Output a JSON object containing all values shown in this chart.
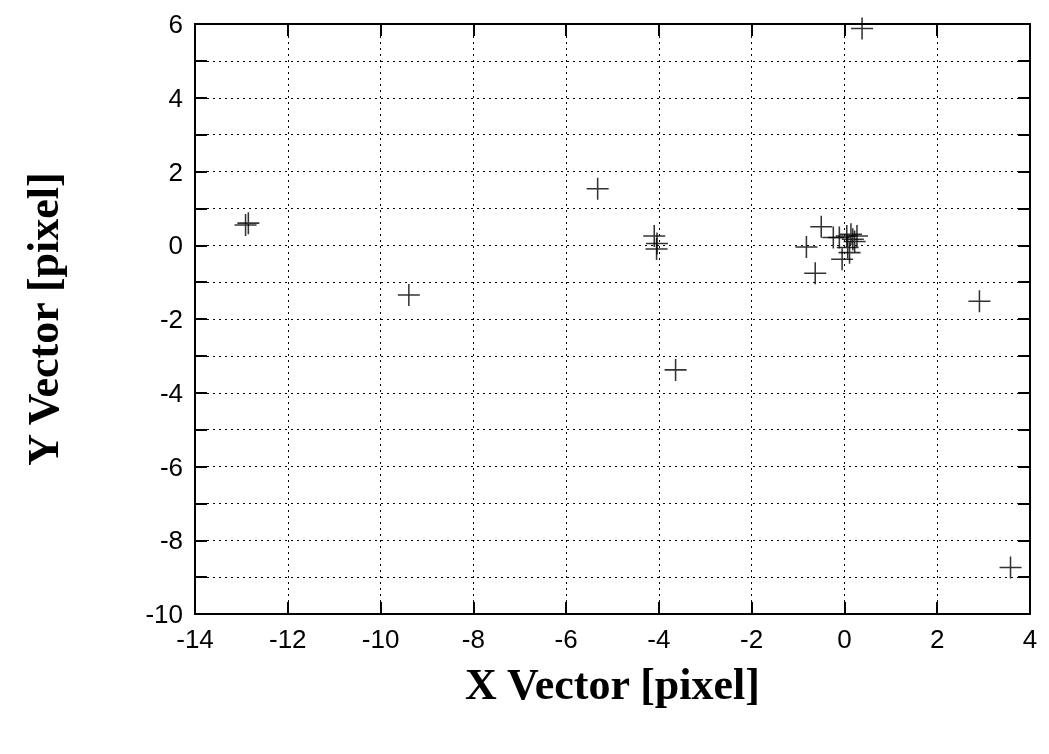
{
  "chart_data": {
    "type": "scatter",
    "xlabel": "X Vector [pixel]",
    "ylabel": "Y Vector [pixel]",
    "x": [
      -12.91,
      -12.85,
      -9.39,
      -5.32,
      -4.1,
      -4.04,
      -4.05,
      -3.64,
      -0.82,
      -0.5,
      -0.63,
      -0.24,
      -0.11,
      -0.05,
      0.05,
      0.14,
      0.18,
      0.07,
      0.22,
      0.11,
      0.27,
      0.38,
      2.91,
      3.58
    ],
    "values": [
      0.55,
      0.6,
      -1.35,
      1.53,
      0.25,
      0.05,
      -0.1,
      -3.38,
      -0.05,
      0.5,
      -0.76,
      0.21,
      0.21,
      -0.38,
      0.25,
      0.3,
      0.16,
      -0.06,
      0.1,
      -0.2,
      0.25,
      5.88,
      -1.52,
      -8.74
    ],
    "color": "#000000",
    "marker": "cross",
    "grid": true,
    "xlim": [
      -14,
      4
    ],
    "xticks": [
      -14,
      -12,
      -10,
      -8,
      -6,
      -4,
      -2,
      0,
      2,
      4
    ],
    "ylim": [
      -10,
      6
    ],
    "yticks": [
      -10,
      {
        "value": -9,
        "label": null
      },
      -8,
      {
        "value": -7,
        "label": null
      },
      -6,
      {
        "value": -5,
        "label": null
      },
      -4,
      {
        "value": -3,
        "label": null
      },
      -2,
      {
        "value": -1,
        "label": null
      },
      0,
      {
        "value": 1,
        "label": null
      },
      2,
      {
        "value": 3,
        "label": null
      },
      4,
      {
        "value": 5,
        "label": null
      },
      6
    ]
  }
}
